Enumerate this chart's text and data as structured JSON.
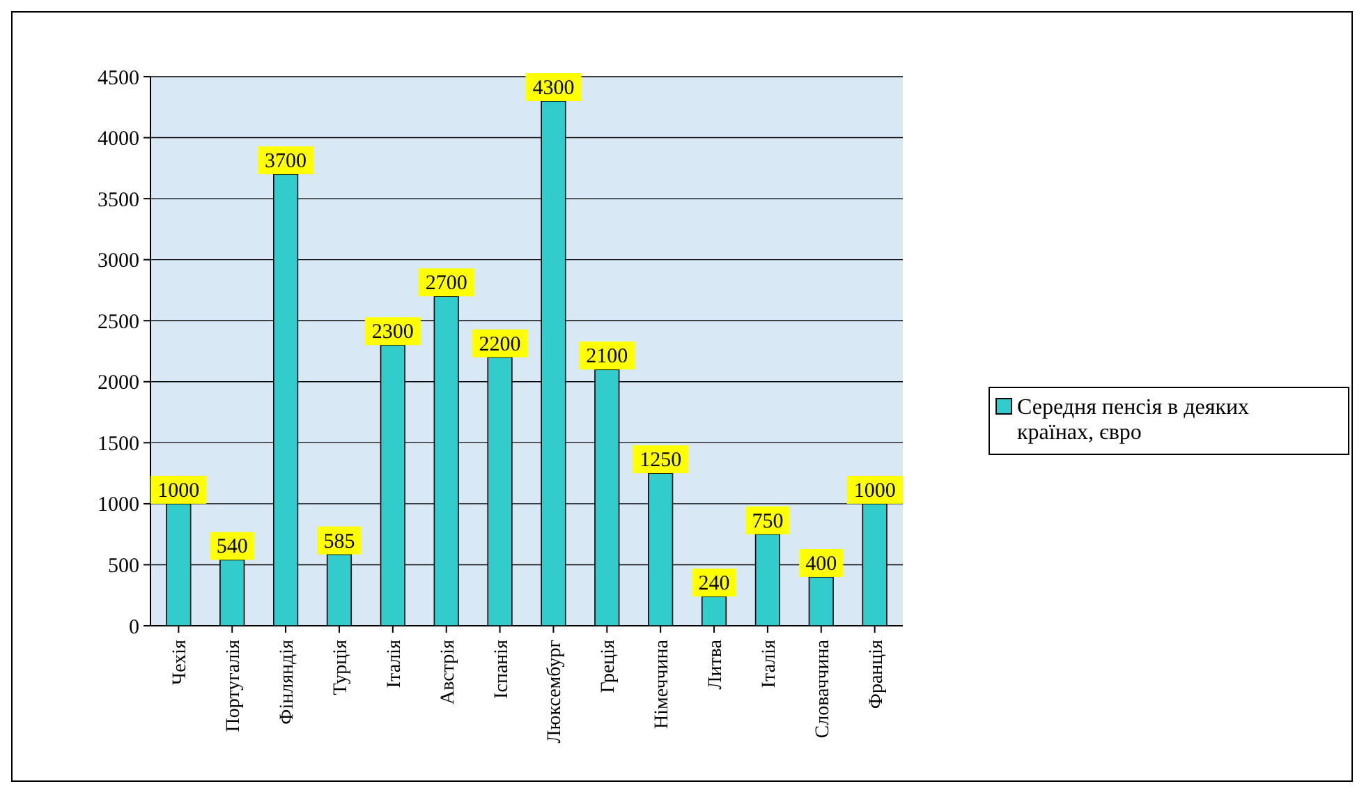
{
  "chart_data": {
    "type": "bar",
    "categories": [
      "Чехія",
      "Португалія",
      "Фінляндія",
      "Турція",
      "Італія",
      "Австрія",
      "Іспанія",
      "Люксембург",
      "Греція",
      "Німеччина",
      "Литва",
      "Італія",
      "Словаччина",
      "Франція"
    ],
    "series": [
      {
        "name": "Середня пенсія в деяких країнах, євро",
        "color": "#33cccc",
        "values": [
          1000,
          540,
          3700,
          585,
          2300,
          2700,
          2200,
          4300,
          2100,
          1250,
          240,
          750,
          400,
          1000
        ]
      }
    ],
    "ylim": [
      0,
      4500
    ],
    "yticks": [
      0,
      500,
      1000,
      1500,
      2000,
      2500,
      3000,
      3500,
      4000,
      4500
    ],
    "grid": "y",
    "legend": "right",
    "data_labels": true
  }
}
